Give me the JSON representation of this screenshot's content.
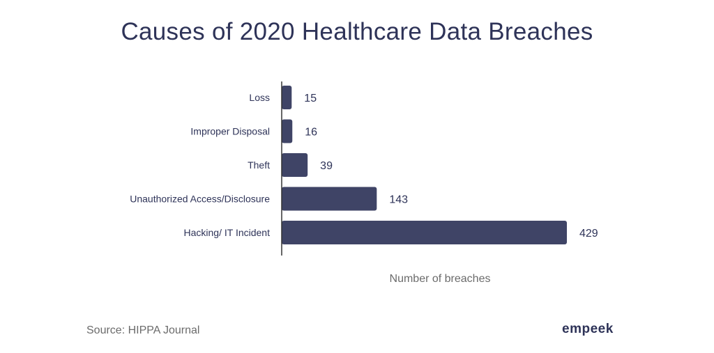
{
  "chart_data": {
    "type": "bar",
    "orientation": "horizontal",
    "title": "Causes of 2020 Healthcare Data Breaches",
    "xlabel": "Number of breaches",
    "ylabel": "",
    "categories": [
      "Loss",
      "Improper Disposal",
      "Theft",
      "Unauthorized Access/Disclosure",
      "Hacking/ IT Incident"
    ],
    "values": [
      15,
      16,
      39,
      143,
      429
    ],
    "data_labels": [
      "15",
      "16",
      "39",
      "143",
      "429"
    ],
    "xlim": [
      0,
      429
    ],
    "grid": false,
    "legend": "none",
    "colors": {
      "bar": "#3f4466",
      "axis": "#333333",
      "text": "#2e3358",
      "muted": "#6b6b6b"
    }
  },
  "footer": {
    "source": "Source: HIPPA Journal",
    "brand": "empeek"
  }
}
